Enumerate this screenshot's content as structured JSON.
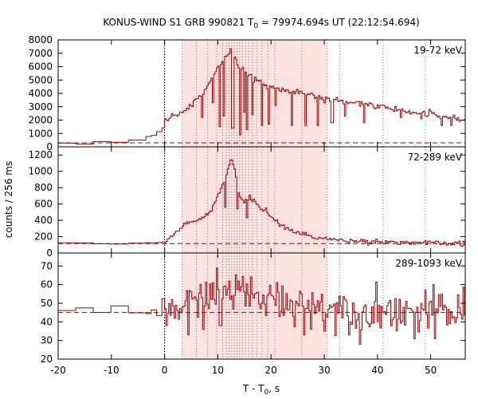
{
  "chart_data": {
    "type": "line",
    "title_prefix": "KONUS-WIND S1 GRB 990821 T",
    "title_sub": "0",
    "title_suffix": " = 79974.694s UT (22:12:54.694)",
    "xlabel_prefix": "T - T",
    "xlabel_sub": "0",
    "xlabel_suffix": ", s",
    "ylabel": "counts / 256 ms",
    "xlim": [
      -20,
      56.5
    ],
    "x_ticks": [
      -20,
      -10,
      0,
      10,
      20,
      30,
      40,
      50
    ],
    "colors": {
      "line": "#a00000",
      "shade": "#fde2e2",
      "background_level": "#a00000"
    },
    "shaded_interval": [
      3.3,
      30.5
    ],
    "guide_lines_x": [
      0,
      3.3,
      6.0,
      8.1,
      9.8,
      10.9,
      11.6,
      12.1,
      12.6,
      13.1,
      13.6,
      14.1,
      14.6,
      15.2,
      15.8,
      16.5,
      17.3,
      18.3,
      19.4,
      20.7,
      25.8,
      30.5,
      32.9,
      41.0,
      49.0
    ],
    "panels": [
      {
        "label": "19-72 keV",
        "ylim": [
          0,
          8000
        ],
        "y_ticks": [
          0,
          1000,
          2000,
          3000,
          4000,
          5000,
          6000,
          7000,
          8000
        ],
        "background_level": 300,
        "curve": [
          [
            -20,
            320
          ],
          [
            -6,
            330
          ],
          [
            -5,
            500
          ],
          [
            -4,
            680
          ],
          [
            -2,
            850
          ],
          [
            -1,
            1100
          ],
          [
            0,
            1900
          ],
          [
            0.5,
            2100
          ],
          [
            1,
            2200
          ],
          [
            2,
            2400
          ],
          [
            3,
            2500
          ],
          [
            4,
            2700
          ],
          [
            5,
            3100
          ],
          [
            6,
            3500
          ],
          [
            7,
            3800
          ],
          [
            8,
            4400
          ],
          [
            9,
            5200
          ],
          [
            10,
            6000
          ],
          [
            11,
            6600
          ],
          [
            12,
            6900
          ],
          [
            12.6,
            7200
          ],
          [
            13,
            6800
          ],
          [
            14,
            6000
          ],
          [
            15,
            5700
          ],
          [
            16,
            5300
          ],
          [
            17,
            5000
          ],
          [
            18,
            4800
          ],
          [
            20,
            4500
          ],
          [
            22,
            4300
          ],
          [
            25,
            4200
          ],
          [
            28,
            3800
          ],
          [
            30,
            3600
          ],
          [
            35,
            3300
          ],
          [
            40,
            3100
          ],
          [
            45,
            2700
          ],
          [
            50,
            2400
          ],
          [
            56.5,
            2000
          ]
        ],
        "noise": 120,
        "dips": [
          [
            7,
            2200
          ],
          [
            9,
            3300
          ],
          [
            10.3,
            1500
          ],
          [
            11.2,
            2300
          ],
          [
            12.8,
            1400
          ],
          [
            14.2,
            900
          ],
          [
            14.9,
            2600
          ],
          [
            15.5,
            1300
          ],
          [
            16.4,
            2400
          ],
          [
            18.2,
            1600
          ],
          [
            19.5,
            1700
          ],
          [
            20.9,
            3100
          ],
          [
            24,
            1600
          ],
          [
            26.5,
            1600
          ],
          [
            28.7,
            1600
          ],
          [
            31.5,
            1800
          ],
          [
            34,
            2300
          ],
          [
            37.5,
            1800
          ],
          [
            44.5,
            2200
          ],
          [
            48.3,
            2100
          ],
          [
            52,
            1600
          ],
          [
            54,
            1600
          ]
        ]
      },
      {
        "label": "72-289 keV",
        "ylim": [
          0,
          1300
        ],
        "y_ticks": [
          0,
          200,
          400,
          600,
          800,
          1000,
          1200
        ],
        "background_level": 115,
        "curve": [
          [
            -20,
            115
          ],
          [
            -2,
            118
          ],
          [
            0,
            140
          ],
          [
            2,
            240
          ],
          [
            3,
            300
          ],
          [
            4,
            360
          ],
          [
            5,
            380
          ],
          [
            6,
            390
          ],
          [
            7,
            420
          ],
          [
            8,
            480
          ],
          [
            9,
            560
          ],
          [
            10,
            700
          ],
          [
            11,
            850
          ],
          [
            12,
            1050
          ],
          [
            12.6,
            1150
          ],
          [
            13.2,
            1020
          ],
          [
            14,
            700
          ],
          [
            15,
            620
          ],
          [
            16,
            670
          ],
          [
            17,
            630
          ],
          [
            18,
            560
          ],
          [
            19,
            520
          ],
          [
            20,
            450
          ],
          [
            22,
            330
          ],
          [
            24,
            270
          ],
          [
            27,
            210
          ],
          [
            30,
            175
          ],
          [
            33,
            155
          ],
          [
            40,
            140
          ],
          [
            50,
            120
          ],
          [
            56.5,
            110
          ]
        ],
        "noise": 15,
        "dips": [
          [
            11.4,
            560
          ],
          [
            13.6,
            540
          ],
          [
            15.6,
            430
          ]
        ]
      },
      {
        "label": "289-1093 keV",
        "ylim": [
          20,
          77
        ],
        "y_ticks": [
          20,
          30,
          40,
          50,
          60,
          70
        ],
        "background_level": 45,
        "curve": [
          [
            -20,
            45
          ],
          [
            -5,
            45
          ],
          [
            0,
            47
          ],
          [
            3,
            48
          ],
          [
            6,
            51
          ],
          [
            8,
            54
          ],
          [
            10,
            56
          ],
          [
            12,
            58
          ],
          [
            13,
            57
          ],
          [
            16,
            54
          ],
          [
            20,
            52
          ],
          [
            25,
            50
          ],
          [
            30,
            48
          ],
          [
            35,
            47
          ],
          [
            45,
            46
          ],
          [
            56.5,
            45
          ]
        ],
        "noise": 5.5,
        "dips": [
          [
            0.3,
            38
          ],
          [
            4.5,
            33
          ],
          [
            7.2,
            36
          ],
          [
            10.5,
            38
          ],
          [
            26.2,
            33
          ],
          [
            27.5,
            36
          ],
          [
            36.8,
            28
          ],
          [
            47,
            31
          ],
          [
            50.8,
            31
          ]
        ]
      }
    ]
  }
}
